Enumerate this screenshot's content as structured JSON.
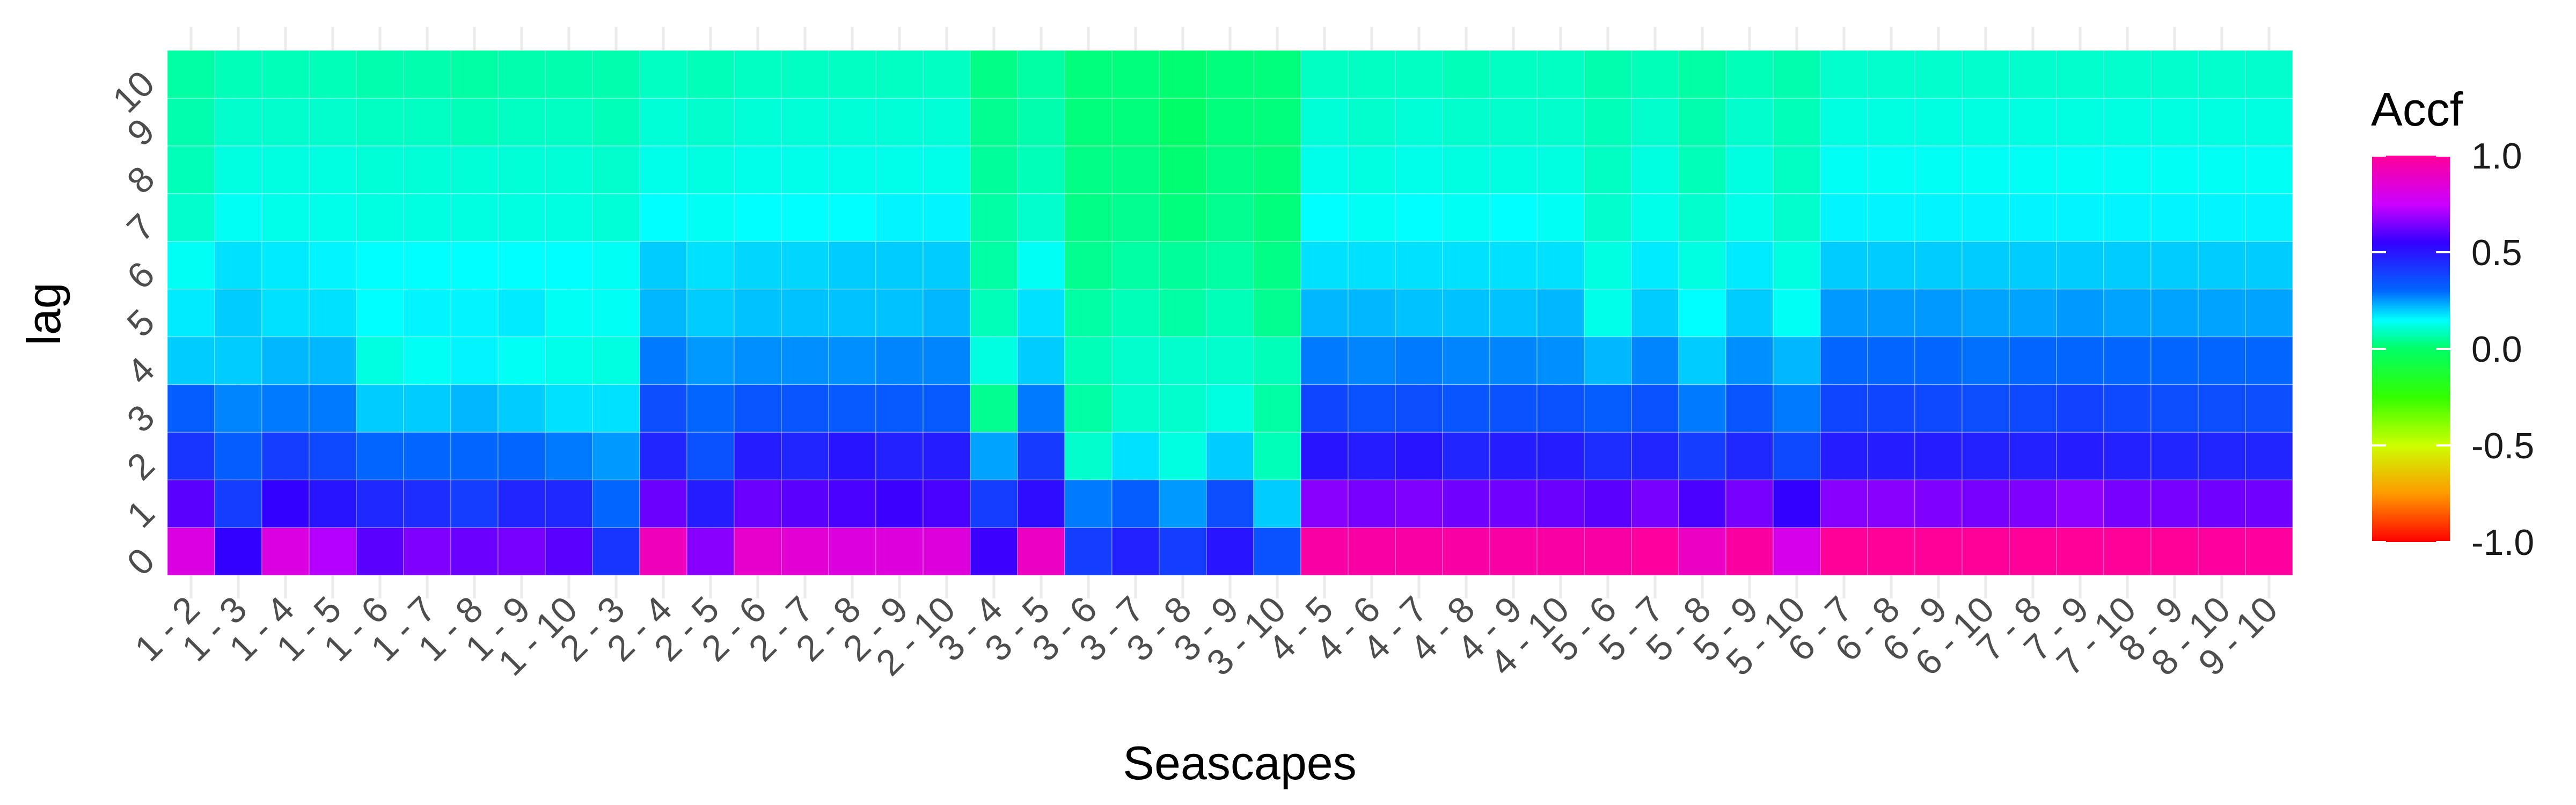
{
  "chart_data": {
    "type": "heatmap",
    "title": "",
    "xlabel": "Seascapes",
    "ylabel": "lag",
    "x_categories": [
      "1 - 2",
      "1 - 3",
      "1 - 4",
      "1 - 5",
      "1 - 6",
      "1 - 7",
      "1 - 8",
      "1 - 9",
      "1 - 10",
      "2 - 3",
      "2 - 4",
      "2 - 5",
      "2 - 6",
      "2 - 7",
      "2 - 8",
      "2 - 9",
      "2 - 10",
      "3 - 4",
      "3 - 5",
      "3 - 6",
      "3 - 7",
      "3 - 8",
      "3 - 9",
      "3 - 10",
      "4 - 5",
      "4 - 6",
      "4 - 7",
      "4 - 8",
      "4 - 9",
      "4 - 10",
      "5 - 6",
      "5 - 7",
      "5 - 8",
      "5 - 9",
      "5 - 10",
      "6 - 7",
      "6 - 8",
      "6 - 9",
      "6 - 10",
      "7 - 8",
      "7 - 9",
      "7 - 10",
      "8 - 9",
      "8 - 10",
      "9 - 10"
    ],
    "y_categories": [
      "0",
      "1",
      "2",
      "3",
      "4",
      "5",
      "6",
      "7",
      "8",
      "9",
      "10"
    ],
    "values": [
      [
        0.82,
        0.55,
        0.82,
        0.72,
        0.6,
        0.65,
        0.62,
        0.64,
        0.6,
        0.42,
        0.92,
        0.66,
        0.88,
        0.86,
        0.83,
        0.84,
        0.84,
        0.56,
        0.9,
        0.4,
        0.47,
        0.4,
        0.5,
        0.35,
        0.97,
        0.97,
        0.97,
        0.97,
        0.97,
        0.97,
        0.97,
        0.99,
        0.9,
        0.98,
        0.8,
        1.0,
        1.0,
        1.0,
        1.0,
        1.0,
        1.02,
        1.0,
        1.0,
        0.99,
        0.99
      ],
      [
        0.6,
        0.4,
        0.55,
        0.5,
        0.45,
        0.44,
        0.4,
        0.46,
        0.45,
        0.3,
        0.62,
        0.48,
        0.62,
        0.6,
        0.58,
        0.56,
        0.58,
        0.4,
        0.52,
        0.28,
        0.32,
        0.25,
        0.36,
        0.2,
        0.66,
        0.64,
        0.65,
        0.63,
        0.63,
        0.62,
        0.6,
        0.64,
        0.58,
        0.64,
        0.55,
        0.66,
        0.66,
        0.65,
        0.64,
        0.65,
        0.67,
        0.64,
        0.64,
        0.63,
        0.63
      ],
      [
        0.42,
        0.32,
        0.4,
        0.37,
        0.3,
        0.3,
        0.3,
        0.3,
        0.28,
        0.25,
        0.46,
        0.35,
        0.48,
        0.46,
        0.5,
        0.47,
        0.48,
        0.24,
        0.41,
        0.1,
        0.18,
        0.12,
        0.2,
        0.08,
        0.5,
        0.48,
        0.5,
        0.46,
        0.48,
        0.48,
        0.44,
        0.46,
        0.4,
        0.45,
        0.37,
        0.48,
        0.48,
        0.48,
        0.47,
        0.47,
        0.48,
        0.47,
        0.46,
        0.46,
        0.46
      ],
      [
        0.32,
        0.27,
        0.28,
        0.28,
        0.2,
        0.2,
        0.22,
        0.2,
        0.18,
        0.18,
        0.36,
        0.3,
        0.34,
        0.34,
        0.33,
        0.33,
        0.33,
        0.04,
        0.28,
        0.06,
        0.1,
        0.1,
        0.12,
        0.06,
        0.38,
        0.35,
        0.36,
        0.34,
        0.35,
        0.35,
        0.32,
        0.35,
        0.28,
        0.34,
        0.28,
        0.38,
        0.38,
        0.37,
        0.36,
        0.37,
        0.39,
        0.37,
        0.36,
        0.36,
        0.36
      ],
      [
        0.2,
        0.2,
        0.22,
        0.22,
        0.12,
        0.14,
        0.16,
        0.14,
        0.13,
        0.12,
        0.28,
        0.25,
        0.26,
        0.26,
        0.26,
        0.27,
        0.27,
        0.12,
        0.2,
        0.08,
        0.1,
        0.1,
        0.1,
        0.08,
        0.28,
        0.27,
        0.28,
        0.27,
        0.27,
        0.26,
        0.22,
        0.27,
        0.2,
        0.26,
        0.22,
        0.3,
        0.3,
        0.3,
        0.29,
        0.3,
        0.3,
        0.3,
        0.3,
        0.3,
        0.3
      ],
      [
        0.17,
        0.2,
        0.18,
        0.18,
        0.15,
        0.16,
        0.16,
        0.17,
        0.14,
        0.14,
        0.22,
        0.2,
        0.21,
        0.21,
        0.21,
        0.21,
        0.22,
        0.08,
        0.18,
        0.06,
        0.08,
        0.06,
        0.08,
        0.04,
        0.22,
        0.22,
        0.21,
        0.21,
        0.21,
        0.22,
        0.13,
        0.2,
        0.15,
        0.2,
        0.14,
        0.25,
        0.25,
        0.25,
        0.24,
        0.24,
        0.25,
        0.24,
        0.24,
        0.24,
        0.24
      ],
      [
        0.14,
        0.18,
        0.17,
        0.16,
        0.15,
        0.15,
        0.15,
        0.15,
        0.15,
        0.14,
        0.2,
        0.18,
        0.19,
        0.19,
        0.2,
        0.2,
        0.2,
        0.06,
        0.14,
        0.04,
        0.06,
        0.05,
        0.06,
        0.03,
        0.18,
        0.18,
        0.18,
        0.18,
        0.18,
        0.18,
        0.12,
        0.17,
        0.12,
        0.17,
        0.12,
        0.2,
        0.2,
        0.2,
        0.2,
        0.2,
        0.2,
        0.2,
        0.2,
        0.2,
        0.2
      ],
      [
        0.1,
        0.14,
        0.13,
        0.13,
        0.12,
        0.12,
        0.12,
        0.12,
        0.12,
        0.11,
        0.15,
        0.14,
        0.15,
        0.15,
        0.15,
        0.16,
        0.16,
        0.06,
        0.1,
        0.03,
        0.04,
        0.02,
        0.04,
        0.02,
        0.15,
        0.14,
        0.15,
        0.14,
        0.15,
        0.14,
        0.1,
        0.13,
        0.1,
        0.13,
        0.1,
        0.16,
        0.16,
        0.16,
        0.16,
        0.16,
        0.16,
        0.16,
        0.16,
        0.16,
        0.16
      ],
      [
        0.08,
        0.12,
        0.12,
        0.12,
        0.11,
        0.11,
        0.11,
        0.11,
        0.11,
        0.1,
        0.13,
        0.12,
        0.13,
        0.13,
        0.13,
        0.13,
        0.13,
        0.05,
        0.08,
        0.03,
        0.03,
        0.01,
        0.03,
        0.02,
        0.13,
        0.12,
        0.13,
        0.12,
        0.12,
        0.12,
        0.09,
        0.12,
        0.08,
        0.12,
        0.09,
        0.14,
        0.14,
        0.14,
        0.14,
        0.14,
        0.14,
        0.14,
        0.14,
        0.14,
        0.14
      ],
      [
        0.07,
        0.1,
        0.1,
        0.1,
        0.09,
        0.09,
        0.08,
        0.09,
        0.09,
        0.08,
        0.11,
        0.1,
        0.11,
        0.11,
        0.11,
        0.11,
        0.11,
        0.04,
        0.07,
        0.02,
        0.02,
        0.0,
        0.02,
        0.02,
        0.11,
        0.1,
        0.11,
        0.1,
        0.1,
        0.1,
        0.08,
        0.1,
        0.07,
        0.1,
        0.08,
        0.12,
        0.12,
        0.12,
        0.12,
        0.12,
        0.12,
        0.12,
        0.12,
        0.12,
        0.12
      ],
      [
        0.06,
        0.08,
        0.08,
        0.08,
        0.07,
        0.07,
        0.06,
        0.07,
        0.07,
        0.07,
        0.09,
        0.08,
        0.09,
        0.09,
        0.09,
        0.09,
        0.09,
        0.03,
        0.06,
        0.02,
        0.02,
        0.01,
        0.02,
        0.02,
        0.09,
        0.09,
        0.09,
        0.08,
        0.09,
        0.09,
        0.07,
        0.08,
        0.06,
        0.08,
        0.07,
        0.1,
        0.1,
        0.1,
        0.1,
        0.1,
        0.1,
        0.1,
        0.1,
        0.1,
        0.1
      ]
    ],
    "color_scale": {
      "title": "Accf",
      "domain": [
        -1.0,
        1.0
      ],
      "stops": [
        {
          "value": -1.0,
          "color": "#ff0000"
        },
        {
          "value": -0.75,
          "color": "#ff9900"
        },
        {
          "value": -0.5,
          "color": "#ccff00"
        },
        {
          "value": -0.25,
          "color": "#33ff00"
        },
        {
          "value": 0.0,
          "color": "#00ff66"
        },
        {
          "value": 0.15,
          "color": "#00ffff"
        },
        {
          "value": 0.3,
          "color": "#0066ff"
        },
        {
          "value": 0.55,
          "color": "#3300ff"
        },
        {
          "value": 0.75,
          "color": "#cc00ff"
        },
        {
          "value": 1.0,
          "color": "#ff0099"
        }
      ],
      "ticks": [
        1.0,
        0.5,
        0.0,
        -0.5,
        -1.0
      ],
      "tick_labels": [
        "1.0",
        "0.5",
        "0.0",
        "-0.5",
        "-1.0"
      ]
    },
    "panel_background": "#ebebeb",
    "grid": true,
    "legend_position": "right"
  }
}
